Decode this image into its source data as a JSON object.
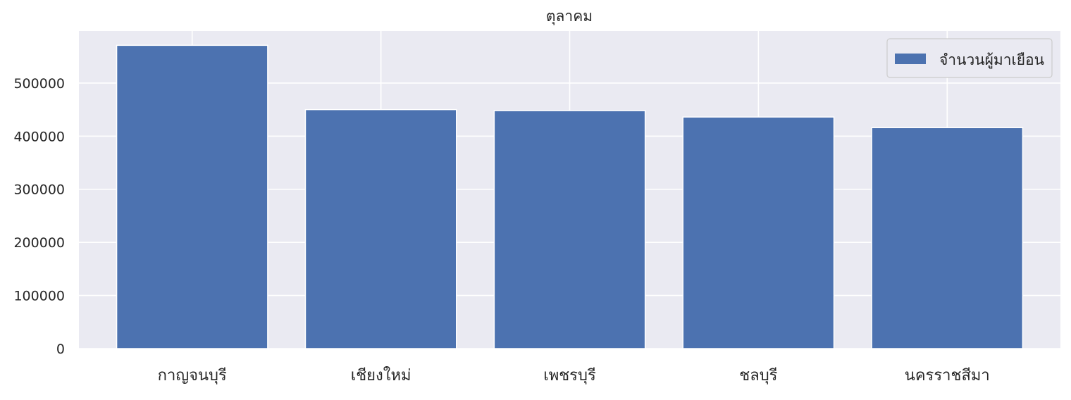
{
  "chart_data": {
    "type": "bar",
    "title": "ตุลาคม",
    "xlabel": "",
    "ylabel": "",
    "categories": [
      "กาญจนบุรี",
      "เชียงใหม่",
      "เพชรบุรี",
      "ชลบุรี",
      "นครราชสีมา"
    ],
    "series": [
      {
        "name": "จำนวนผู้มาเยือน",
        "values": [
          571000,
          450000,
          448000,
          436000,
          416000
        ]
      }
    ],
    "ylim": [
      0,
      598000
    ],
    "yticks": [
      0,
      100000,
      200000,
      300000,
      400000,
      500000
    ],
    "ytick_labels": [
      "0",
      "100000",
      "200000",
      "300000",
      "400000",
      "500000"
    ],
    "grid": true,
    "legend_position": "top-right",
    "colors": {
      "bar": "#4c72b0",
      "plot_background": "#eaeaf2",
      "grid": "#ffffff"
    }
  }
}
